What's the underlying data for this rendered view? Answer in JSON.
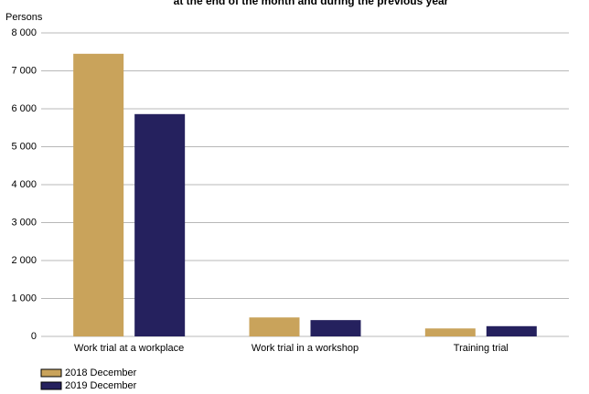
{
  "chart_data": {
    "type": "bar",
    "title": "at the end of the month and during the previous year",
    "y_label": "Persons",
    "categories": [
      "Work trial at a workplace",
      "Work trial in a workshop",
      "Training trial"
    ],
    "series": [
      {
        "name": "2018 December",
        "color": "#c9a35b",
        "values": [
          7450,
          500,
          210
        ]
      },
      {
        "name": "2019 December",
        "color": "#25215e",
        "values": [
          5860,
          430,
          270
        ]
      }
    ],
    "ylim": [
      0,
      8000
    ],
    "yticks": [
      0,
      {
        "value": 1000,
        "label": "1 000"
      },
      {
        "value": 2000,
        "label": "2 000"
      },
      {
        "value": 3000,
        "label": "3 000"
      },
      {
        "value": 4000,
        "label": "4 000"
      },
      {
        "value": 5000,
        "label": "5 000"
      },
      {
        "value": 6000,
        "label": "6 000"
      },
      {
        "value": 7000,
        "label": "7 000"
      },
      {
        "value": 8000,
        "label": "8 000"
      }
    ],
    "grid": true
  }
}
